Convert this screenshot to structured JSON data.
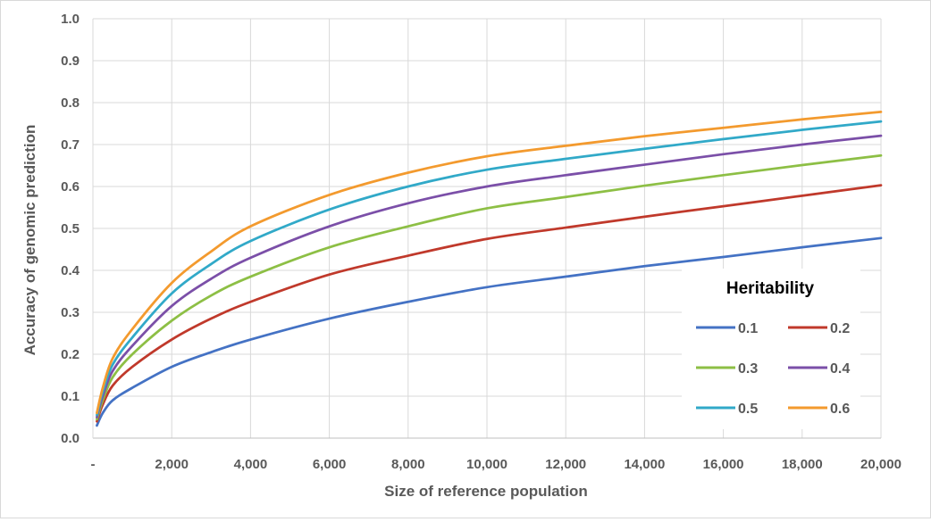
{
  "chart_data": {
    "type": "line",
    "title": "",
    "xlabel": "Size of reference population",
    "ylabel": "Accuracy of genomic prediction",
    "xlim": [
      0,
      20000
    ],
    "ylim": [
      0,
      1.0
    ],
    "grid": true,
    "x_ticks": [
      0,
      2000,
      4000,
      6000,
      8000,
      10000,
      12000,
      14000,
      16000,
      18000,
      20000
    ],
    "x_tick_labels": [
      "-",
      "2,000",
      "4,000",
      "6,000",
      "8,000",
      "10,000",
      "12,000",
      "14,000",
      "16,000",
      "18,000",
      "20,000"
    ],
    "y_ticks": [
      0,
      0.1,
      0.2,
      0.3,
      0.4,
      0.5,
      0.6,
      0.7,
      0.8,
      0.9,
      1.0
    ],
    "y_tick_labels": [
      "0.0",
      "0.1",
      "0.2",
      "0.3",
      "0.4",
      "0.5",
      "0.6",
      "0.7",
      "0.8",
      "0.9",
      "1.0"
    ],
    "legend": {
      "title": "Heritability",
      "position": "bottom-right"
    },
    "x": [
      100,
      250,
      500,
      1000,
      2000,
      3000,
      4000,
      6000,
      8000,
      10000,
      12000,
      14000,
      16000,
      18000,
      20000
    ],
    "series": [
      {
        "name": "0.1",
        "color": "#4472C4",
        "values": [
          0.03,
          0.06,
          0.09,
          0.12,
          0.17,
          0.205,
          0.235,
          0.285,
          0.325,
          0.36,
          0.385,
          0.41,
          0.432,
          0.455,
          0.477
        ]
      },
      {
        "name": "0.2",
        "color": "#C0392B",
        "values": [
          0.04,
          0.08,
          0.125,
          0.17,
          0.235,
          0.285,
          0.325,
          0.39,
          0.435,
          0.475,
          0.502,
          0.528,
          0.553,
          0.578,
          0.603
        ]
      },
      {
        "name": "0.3",
        "color": "#8DBF45",
        "values": [
          0.045,
          0.09,
          0.145,
          0.2,
          0.28,
          0.34,
          0.385,
          0.455,
          0.505,
          0.548,
          0.575,
          0.602,
          0.627,
          0.651,
          0.674
        ]
      },
      {
        "name": "0.4",
        "color": "#7B4FA8",
        "values": [
          0.05,
          0.1,
          0.16,
          0.22,
          0.315,
          0.38,
          0.43,
          0.505,
          0.56,
          0.6,
          0.627,
          0.652,
          0.677,
          0.7,
          0.721
        ]
      },
      {
        "name": "0.5",
        "color": "#31A9C8",
        "values": [
          0.055,
          0.11,
          0.175,
          0.24,
          0.345,
          0.415,
          0.47,
          0.545,
          0.6,
          0.64,
          0.666,
          0.69,
          0.713,
          0.735,
          0.755
        ]
      },
      {
        "name": "0.6",
        "color": "#F39A2E",
        "values": [
          0.06,
          0.12,
          0.19,
          0.26,
          0.37,
          0.445,
          0.505,
          0.58,
          0.633,
          0.672,
          0.697,
          0.72,
          0.74,
          0.76,
          0.778
        ]
      }
    ]
  }
}
